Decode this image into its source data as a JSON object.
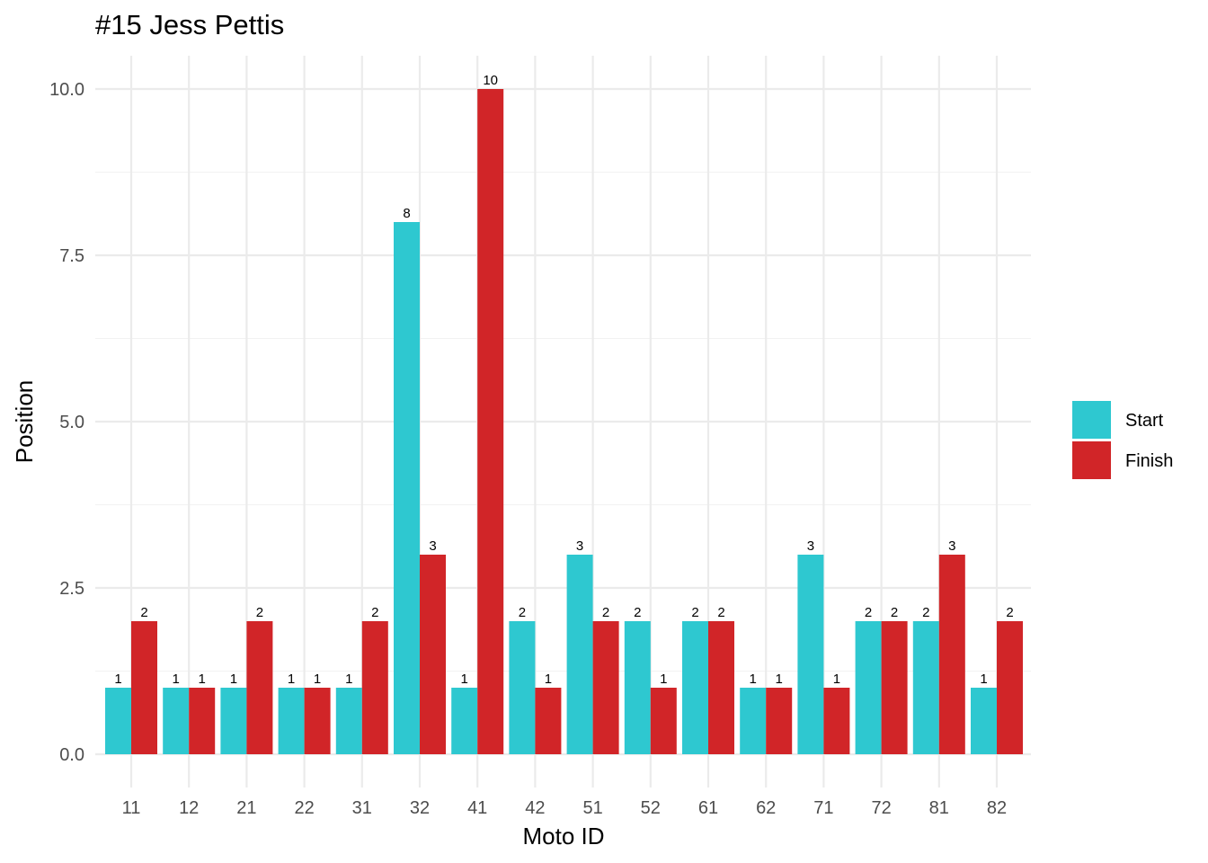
{
  "chart_data": {
    "type": "bar",
    "title": "#15 Jess Pettis",
    "xlabel": "Moto ID",
    "ylabel": "Position",
    "categories": [
      "11",
      "12",
      "21",
      "22",
      "31",
      "32",
      "41",
      "42",
      "51",
      "52",
      "61",
      "62",
      "71",
      "72",
      "81",
      "82"
    ],
    "series": [
      {
        "name": "Start",
        "color": "#2ec8d0",
        "values": [
          1,
          1,
          1,
          1,
          1,
          8,
          1,
          2,
          3,
          2,
          2,
          1,
          3,
          2,
          2,
          1
        ]
      },
      {
        "name": "Finish",
        "color": "#d12528",
        "values": [
          2,
          1,
          2,
          1,
          2,
          3,
          10,
          1,
          2,
          1,
          2,
          1,
          1,
          2,
          3,
          2
        ]
      }
    ],
    "ylim": [
      -0.5,
      10.5
    ],
    "yticks": [
      "0.0",
      "2.5",
      "5.0",
      "7.5",
      "10.0"
    ],
    "grid": true,
    "legend_position": "right"
  }
}
